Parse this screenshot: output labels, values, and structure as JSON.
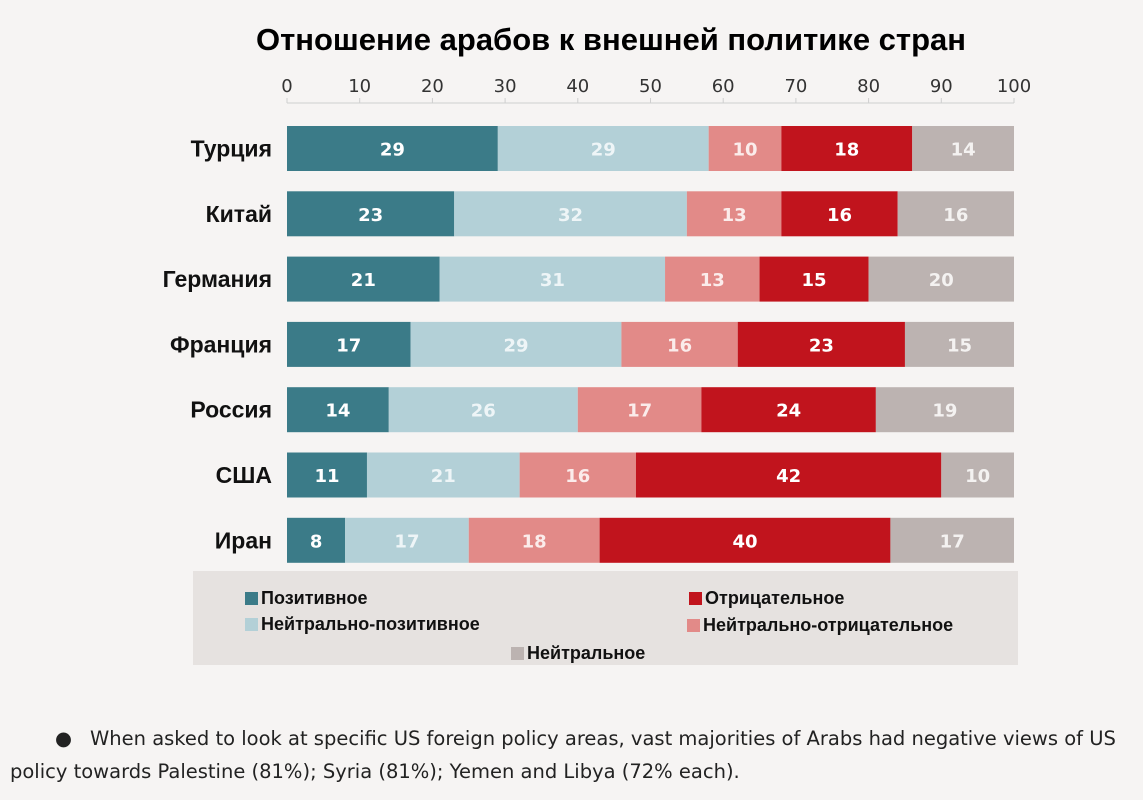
{
  "colors": {
    "positive": "#3b7b88",
    "neutral_positive": "#b3d0d7",
    "neutral_negative": "#e28a88",
    "negative": "#c1141d",
    "neutral": "#bcb3b1"
  },
  "chart_data": {
    "type": "bar",
    "orientation": "horizontal-stacked",
    "title": "Отношение арабов к внешней политике стран",
    "xlabel": "",
    "ylabel": "",
    "xlim": [
      0,
      100
    ],
    "x_ticks": [
      0,
      10,
      20,
      30,
      40,
      50,
      60,
      70,
      80,
      90,
      100
    ],
    "axis_position": "top",
    "grid": false,
    "legend_position": "bottom",
    "categories": [
      "Турция",
      "Китай",
      "Германия",
      "Франция",
      "Россия",
      "США",
      "Иран"
    ],
    "series": [
      {
        "name": "Позитивное",
        "key": "positive",
        "values": [
          29,
          23,
          21,
          17,
          14,
          11,
          8
        ]
      },
      {
        "name": "Нейтрально-позитивное",
        "key": "neutral_positive",
        "values": [
          29,
          32,
          31,
          29,
          26,
          21,
          17
        ]
      },
      {
        "name": "Нейтрально-отрицательное",
        "key": "neutral_negative",
        "values": [
          10,
          13,
          13,
          16,
          17,
          16,
          18
        ]
      },
      {
        "name": "Отрицательное",
        "key": "negative",
        "values": [
          18,
          16,
          15,
          23,
          24,
          42,
          40
        ]
      },
      {
        "name": "Нейтральное",
        "key": "neutral",
        "values": [
          14,
          16,
          20,
          15,
          19,
          10,
          17
        ]
      }
    ]
  },
  "legend": {
    "positive": "Позитивное",
    "negative": "Отрицательное",
    "neutral_positive": "Нейтрально-позитивное",
    "neutral_negative": "Нейтрально-отрицательное",
    "neutral": "Нейтральное"
  },
  "footnote": {
    "bullet": "●",
    "text": "When asked to look at specific US foreign policy areas, vast majorities of Arabs had negative views of US policy towards Palestine (81%); Syria (81%); Yemen and Libya (72% each)."
  }
}
